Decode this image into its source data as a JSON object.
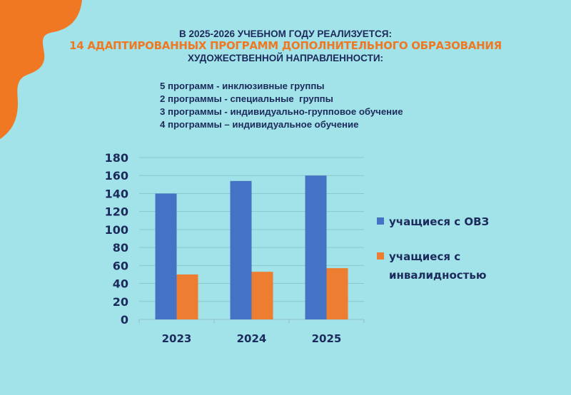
{
  "header": {
    "line1": "В 2025-2026 УЧЕБНОМ ГОДУ РЕАЛИЗУЕТСЯ:",
    "line2": "14 АДАПТИРОВАННЫХ ПРОГРАММ ДОПОЛНИТЕЛЬНОГО ОБРАЗОВАНИЯ",
    "line3": "ХУДОЖЕСТВЕННОЙ НАПРАВЛЕННОСТИ:"
  },
  "programs": [
    "5 программ - инклюзивные группы",
    "2 программы - специальные  группы",
    "3 программы - индивидуально-групповое обучение",
    "4 программы – индивидуальное обучение"
  ],
  "colors": {
    "background": "#a1e3e8",
    "accent_orange": "#f07822",
    "text_dark": "#1d2a5c",
    "series_blue": "#4472c4",
    "series_orange": "#ed7d31",
    "gridline": "#8cc7cc"
  },
  "legend": {
    "item1": "учащиеся с ОВЗ",
    "item2_line1": "учащиеся с",
    "item2_line2": "инвалидностью"
  },
  "chart_data": {
    "type": "bar",
    "title": "",
    "xlabel": "",
    "ylabel": "",
    "categories": [
      "2023",
      "2024",
      "2025"
    ],
    "series": [
      {
        "name": "учащиеся с ОВЗ",
        "color": "#4472c4",
        "values": [
          140,
          154,
          160
        ]
      },
      {
        "name": "учащиеся с инвалидностью",
        "color": "#ed7d31",
        "values": [
          50,
          53,
          57
        ]
      }
    ],
    "ylim": [
      0,
      180
    ],
    "yticks": [
      0,
      20,
      40,
      60,
      80,
      100,
      120,
      140,
      160,
      180
    ],
    "grid": true,
    "legend_position": "right"
  }
}
